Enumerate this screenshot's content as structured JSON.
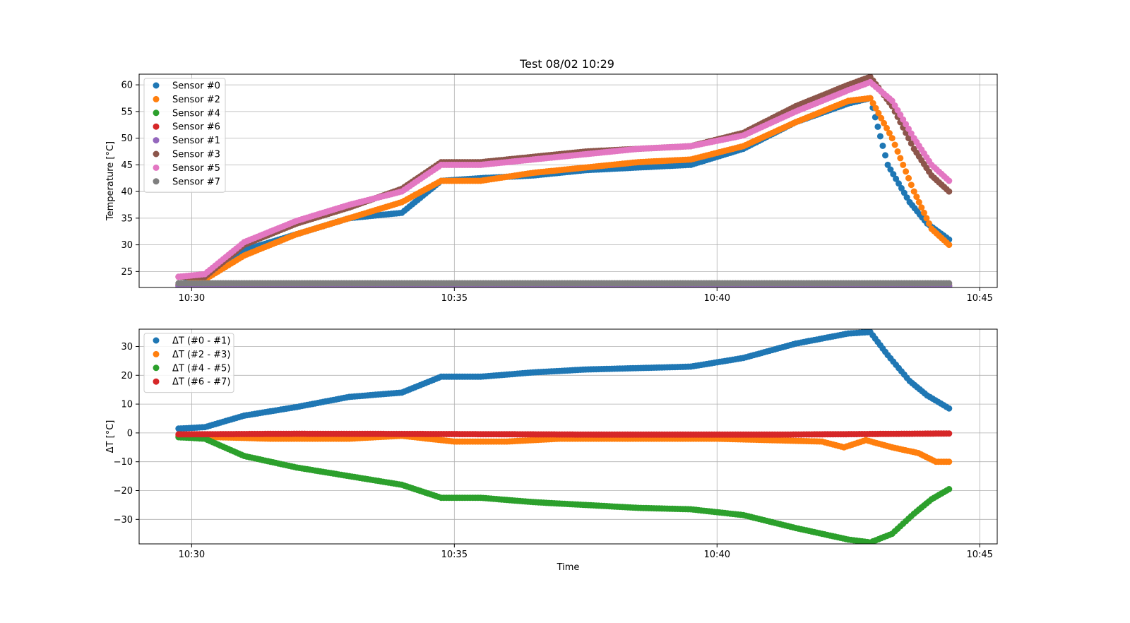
{
  "title": "Test 08/02 10:29",
  "chart_data": [
    {
      "type": "scatter",
      "title": "Test 08/02 10:29",
      "xlabel": "",
      "ylabel": "Temperature [°C]",
      "xlim": [
        "10:29:00",
        "10:45:20"
      ],
      "ylim": [
        22,
        62
      ],
      "xticks": [
        "10:30",
        "10:35",
        "10:40",
        "10:45"
      ],
      "yticks": [
        25,
        30,
        35,
        40,
        45,
        50,
        55,
        60
      ],
      "grid": true,
      "legend": "top-left",
      "series": [
        {
          "name": "Sensor #0",
          "color": "#1f77b4",
          "x": [
            "10:29:45",
            "10:30:15",
            "10:31:00",
            "10:32:00",
            "10:33:00",
            "10:34:00",
            "10:34:45",
            "10:35:30",
            "10:36:30",
            "10:37:30",
            "10:38:30",
            "10:39:30",
            "10:40:30",
            "10:41:30",
            "10:42:30",
            "10:42:55",
            "10:43:15",
            "10:43:40",
            "10:44:00",
            "10:44:25"
          ],
          "y": [
            22.5,
            24,
            29,
            32,
            35,
            36,
            42,
            42.5,
            43,
            44,
            44.5,
            45,
            48,
            53,
            56.5,
            57.5,
            45,
            38,
            34,
            31
          ]
        },
        {
          "name": "Sensor #2",
          "color": "#ff7f0e",
          "x": [
            "10:29:45",
            "10:30:15",
            "10:31:00",
            "10:32:00",
            "10:33:00",
            "10:34:00",
            "10:34:45",
            "10:35:30",
            "10:36:30",
            "10:37:30",
            "10:38:30",
            "10:39:30",
            "10:40:30",
            "10:41:30",
            "10:42:30",
            "10:42:55",
            "10:43:20",
            "10:43:45",
            "10:44:05",
            "10:44:25"
          ],
          "y": [
            22.5,
            23.5,
            28,
            32,
            35,
            38,
            42,
            42,
            43.5,
            44.5,
            45.5,
            46,
            48.5,
            53,
            57,
            57.5,
            50,
            40,
            33,
            30
          ]
        },
        {
          "name": "Sensor #4",
          "color": "#2ca02c",
          "x": [
            "10:29:45",
            "10:32:00",
            "10:35:00",
            "10:38:00",
            "10:41:00",
            "10:44:25"
          ],
          "y": [
            22.1,
            22.1,
            22.1,
            22.1,
            22.1,
            22.1
          ]
        },
        {
          "name": "Sensor #6",
          "color": "#d62728",
          "x": [
            "10:29:45",
            "10:32:00",
            "10:35:00",
            "10:38:00",
            "10:41:00",
            "10:44:25"
          ],
          "y": [
            22.4,
            22.4,
            22.4,
            22.4,
            22.4,
            22.4
          ]
        },
        {
          "name": "Sensor #1",
          "color": "#9467bd",
          "x": [
            "10:29:45",
            "10:32:00",
            "10:35:00",
            "10:38:00",
            "10:41:00",
            "10:44:25"
          ],
          "y": [
            22.3,
            22.3,
            22.3,
            22.3,
            22.3,
            22.3
          ]
        },
        {
          "name": "Sensor #3",
          "color": "#8c564b",
          "x": [
            "10:29:45",
            "10:30:15",
            "10:31:00",
            "10:32:00",
            "10:33:00",
            "10:34:00",
            "10:34:45",
            "10:35:30",
            "10:36:30",
            "10:37:30",
            "10:38:30",
            "10:39:30",
            "10:40:30",
            "10:41:30",
            "10:42:30",
            "10:42:55",
            "10:43:20",
            "10:43:45",
            "10:44:05",
            "10:44:25"
          ],
          "y": [
            24,
            24,
            30,
            34,
            37,
            40.5,
            45.5,
            45.5,
            46.5,
            47.5,
            48,
            48.5,
            51,
            56,
            60,
            61.5,
            56,
            48,
            43,
            40
          ]
        },
        {
          "name": "Sensor #5",
          "color": "#e377c2",
          "x": [
            "10:29:45",
            "10:30:15",
            "10:31:00",
            "10:32:00",
            "10:33:00",
            "10:34:00",
            "10:34:45",
            "10:35:30",
            "10:36:30",
            "10:37:30",
            "10:38:30",
            "10:39:30",
            "10:40:30",
            "10:41:30",
            "10:42:30",
            "10:42:55",
            "10:43:20",
            "10:43:45",
            "10:44:05",
            "10:44:25"
          ],
          "y": [
            24,
            24.5,
            30.5,
            34.5,
            37.5,
            40,
            45,
            45,
            46,
            47,
            48,
            48.5,
            50.5,
            55,
            59,
            60.5,
            57,
            50,
            45,
            42
          ]
        },
        {
          "name": "Sensor #7",
          "color": "#7f7f7f",
          "x": [
            "10:29:45",
            "10:32:00",
            "10:35:00",
            "10:38:00",
            "10:41:00",
            "10:44:25"
          ],
          "y": [
            22.8,
            22.8,
            22.8,
            22.8,
            22.8,
            22.8
          ]
        }
      ]
    },
    {
      "type": "scatter",
      "title": "",
      "xlabel": "Time",
      "ylabel": "ΔT [°C]",
      "xlim": [
        "10:29:00",
        "10:45:20"
      ],
      "ylim": [
        -38.5,
        36
      ],
      "xticks": [
        "10:30",
        "10:35",
        "10:40",
        "10:45"
      ],
      "yticks": [
        -30,
        -20,
        -10,
        0,
        10,
        20,
        30
      ],
      "grid": true,
      "legend": "top-left",
      "series": [
        {
          "name": "ΔT (#0 - #1)",
          "color": "#1f77b4",
          "x": [
            "10:29:45",
            "10:30:15",
            "10:31:00",
            "10:32:00",
            "10:33:00",
            "10:34:00",
            "10:34:45",
            "10:35:30",
            "10:36:30",
            "10:37:30",
            "10:38:30",
            "10:39:30",
            "10:40:30",
            "10:41:30",
            "10:42:30",
            "10:42:55",
            "10:43:15",
            "10:43:40",
            "10:44:00",
            "10:44:25"
          ],
          "y": [
            1.5,
            2,
            6,
            9,
            12.5,
            14,
            19.5,
            19.5,
            21,
            22,
            22.5,
            23,
            26,
            31,
            34.5,
            35,
            27,
            18,
            13,
            8.5
          ]
        },
        {
          "name": "ΔT (#2 - #3)",
          "color": "#ff7f0e",
          "x": [
            "10:29:45",
            "10:30:30",
            "10:31:30",
            "10:33:00",
            "10:34:00",
            "10:35:00",
            "10:36:00",
            "10:37:00",
            "10:38:00",
            "10:39:00",
            "10:40:00",
            "10:41:00",
            "10:42:00",
            "10:42:25",
            "10:42:50",
            "10:43:20",
            "10:43:50",
            "10:44:10",
            "10:44:25"
          ],
          "y": [
            -1,
            -1.5,
            -2,
            -2,
            -1,
            -3,
            -3,
            -2,
            -2,
            -2,
            -2,
            -2.5,
            -3,
            -5,
            -2.5,
            -5,
            -7,
            -10,
            -10
          ]
        },
        {
          "name": "ΔT (#4 - #5)",
          "color": "#2ca02c",
          "x": [
            "10:29:45",
            "10:30:15",
            "10:31:00",
            "10:32:00",
            "10:33:00",
            "10:34:00",
            "10:34:45",
            "10:35:30",
            "10:36:30",
            "10:37:30",
            "10:38:30",
            "10:39:30",
            "10:40:30",
            "10:41:30",
            "10:42:30",
            "10:42:55",
            "10:43:20",
            "10:43:45",
            "10:44:05",
            "10:44:25"
          ],
          "y": [
            -1.5,
            -2,
            -8,
            -12,
            -15,
            -18,
            -22.5,
            -22.5,
            -24,
            -25,
            -26,
            -26.5,
            -28.5,
            -33,
            -37,
            -38,
            -35,
            -28,
            -23,
            -19.5
          ]
        },
        {
          "name": "ΔT (#6 - #7)",
          "color": "#d62728",
          "x": [
            "10:29:45",
            "10:32:00",
            "10:35:00",
            "10:38:00",
            "10:41:00",
            "10:44:25"
          ],
          "y": [
            -0.5,
            -0.3,
            -0.4,
            -0.6,
            -0.6,
            -0.2
          ]
        }
      ]
    }
  ]
}
